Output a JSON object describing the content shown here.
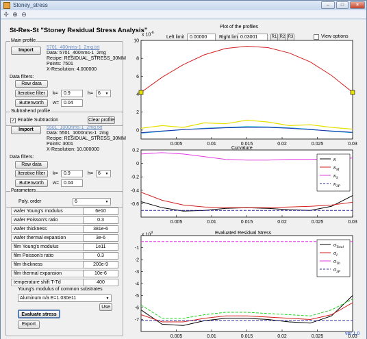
{
  "window": {
    "title": "Stoney_stress"
  },
  "app_title": "St-Res-St  \"Stoney Residual Stress Analysis\"",
  "main_profile": {
    "group_label": "Main profile",
    "import_label": "Import",
    "file": "5701_400nms-1_2mg.txt",
    "data": "Data: 5701_400nms-1_2mg",
    "recipe": "Recipe: RESIDUAL_STRESS_30MM",
    "points": "Points: 7501",
    "xres": "X-Resolution: 4.000000",
    "filters_label": "Data filters:",
    "raw_label": "Raw data",
    "iter_label": "Iterative filter",
    "butter_label": "Butterworth",
    "k_label": "k=",
    "k_value": "0.9",
    "h_label": "h=",
    "h_value": "6",
    "w_label": "w=",
    "w_value": "0.04"
  },
  "sub_profile": {
    "group_label": "Subtrahend  profile",
    "enable_label": "Enable Subtraction",
    "enable_checked": "✓",
    "clear_label": "Clear profile",
    "import_label": "Import",
    "file": "5501_1000nms-1_2mg.txt",
    "data": "Data: 5501_1000nms-1_2mg",
    "recipe": "Recipe: RESIDUAL_STRESS_30MM",
    "points": "Points: 3001",
    "xres": "X-Resolution: 10.000000",
    "filters_label": "Data filters:",
    "raw_label": "Raw data",
    "iter_label": "Iterative filter",
    "butter_label": "Butterworth",
    "k_label": "k=",
    "k_value": "0.9",
    "h_label": "h=",
    "h_value": "6",
    "w_label": "w=",
    "w_value": "0.04"
  },
  "parameters": {
    "group_label": "Parameters",
    "poly_label": "Poly. order",
    "poly_value": "6",
    "rows": [
      {
        "label": "wafer Young's modulus",
        "value": "6e10"
      },
      {
        "label": "wafer Poisson's ratio",
        "value": "0.3"
      },
      {
        "label": "wafer thickness",
        "value": "381e-6"
      },
      {
        "label": "wafer thermal expansion",
        "value": "3e-6"
      },
      {
        "label": "film Young's modulus",
        "value": "1e11"
      },
      {
        "label": "film Poisson's ratio",
        "value": "0.3"
      },
      {
        "label": "film thickness",
        "value": "200e-9"
      },
      {
        "label": "film thermal expansion",
        "value": "10e-6"
      },
      {
        "label": "temperature shift T-Td",
        "value": "400"
      }
    ],
    "substrates_label": "Young's modulus of common substrates",
    "substrate_value": "Aluminum n/a E=1.030e11",
    "use_label": "Use",
    "evaluate_label": "Evaluate stress",
    "export_label": "Export"
  },
  "profiles_plot": {
    "title": "Plot of the profiles",
    "left_limit_label": "Left limit",
    "left_limit_value": "0.00000",
    "right_limit_label": "Right limit",
    "right_limit_value": "0.03001",
    "r1_label": "R1",
    "r2_label": "R2",
    "r3_label": "R3",
    "view_options_label": "View options",
    "exponent": "x 10",
    "exponent_power": "-6"
  },
  "curvature_plot": {
    "title": "Curvature"
  },
  "stress_plot": {
    "title": "Evaluated Residual Stress",
    "exponent": "x 10",
    "exponent_power": "9"
  },
  "version": "ver 1.0",
  "colors": {
    "red": "#d21e1e",
    "blue": "#1c2fa8",
    "yellow": "#e8e000",
    "cyan": "#22b5d6",
    "green": "#22d322",
    "magenta": "#e23ae2",
    "navy": "#2a2a9a"
  },
  "chart_data": [
    {
      "type": "line",
      "title": "Plot of the profiles",
      "xlim": [
        0,
        0.03
      ],
      "ylim": [
        -1,
        10
      ],
      "x_ticks": [
        0.005,
        0.01,
        0.015,
        0.02,
        0.025,
        0.03
      ],
      "x_tick_labels": [
        "0.005",
        "0.01",
        "0.015",
        "0.02",
        "0.025",
        "0.03"
      ],
      "y_ticks": [
        0,
        2,
        4,
        6,
        8,
        10
      ],
      "y_tick_labels": [
        "0",
        "2",
        "4",
        "6",
        "8",
        "10"
      ],
      "series": [
        {
          "color": "red",
          "x": [
            0,
            0.003,
            0.006,
            0.009,
            0.012,
            0.015,
            0.018,
            0.021,
            0.024,
            0.027,
            0.03
          ],
          "y": [
            4.2,
            5.9,
            7.3,
            8.4,
            9.1,
            9.35,
            9.2,
            8.6,
            7.6,
            6.1,
            4.2
          ]
        },
        {
          "color": "cyan",
          "x": [
            0,
            0.003,
            0.006,
            0.009,
            0.012,
            0.015,
            0.018,
            0.021,
            0.024,
            0.027,
            0.03
          ],
          "y": [
            -0.35,
            -0.15,
            0.05,
            0.2,
            0.3,
            0.4,
            0.35,
            0.25,
            0.1,
            -0.15,
            -0.3
          ]
        },
        {
          "color": "yellow",
          "x": [
            0,
            0.003,
            0.006,
            0.009,
            0.012,
            0.015,
            0.018,
            0.021,
            0.024,
            0.027,
            0.03
          ],
          "y": [
            0.2,
            0.5,
            0.3,
            0.8,
            0.7,
            1.1,
            0.9,
            0.5,
            0.6,
            0.3,
            0.1
          ]
        },
        {
          "color": "blue",
          "x": [
            0,
            0.003,
            0.006,
            0.009,
            0.012,
            0.015,
            0.018,
            0.021,
            0.024,
            0.027,
            0.03
          ],
          "y": [
            -0.3,
            -0.1,
            0.05,
            0.15,
            0.25,
            0.3,
            0.3,
            0.2,
            0.05,
            -0.1,
            -0.25
          ]
        }
      ],
      "markers": [
        {
          "x": 0,
          "y": 4.2
        },
        {
          "x": 0.03,
          "y": 4.2
        }
      ]
    },
    {
      "type": "line",
      "title": "Curvature",
      "xlim": [
        0,
        0.03
      ],
      "ylim": [
        -0.8,
        0.2
      ],
      "x_ticks": [
        0.005,
        0.01,
        0.015,
        0.02,
        0.025,
        0.03
      ],
      "x_tick_labels": [
        "0.005",
        "0.01",
        "0.015",
        "0.02",
        "0.025",
        "0.03"
      ],
      "y_ticks": [
        -0.6,
        -0.4,
        -0.2,
        0,
        0.2
      ],
      "y_tick_labels": [
        "-0.6",
        "-0.4",
        "-0.2",
        "0",
        "0.2"
      ],
      "legend": [
        {
          "label": "κ",
          "sub": "",
          "color": "black",
          "dash": false
        },
        {
          "label": "κ",
          "sub": "M",
          "color": "red",
          "dash": false
        },
        {
          "label": "κ",
          "sub": "S",
          "color": "magenta",
          "dash": false
        },
        {
          "label": "κ",
          "sub": "3P",
          "color": "navy",
          "dash": true
        }
      ],
      "series": [
        {
          "color": "black",
          "x": [
            0,
            0.003,
            0.006,
            0.009,
            0.012,
            0.015,
            0.018,
            0.021,
            0.024,
            0.027,
            0.03
          ],
          "y": [
            -0.57,
            -0.66,
            -0.71,
            -0.7,
            -0.67,
            -0.66,
            -0.67,
            -0.69,
            -0.7,
            -0.64,
            -0.48
          ]
        },
        {
          "color": "red",
          "x": [
            0,
            0.003,
            0.006,
            0.009,
            0.012,
            0.015,
            0.018,
            0.021,
            0.024,
            0.027,
            0.03
          ],
          "y": [
            -0.43,
            -0.55,
            -0.62,
            -0.65,
            -0.66,
            -0.66,
            -0.66,
            -0.65,
            -0.64,
            -0.62,
            -0.58
          ]
        },
        {
          "color": "magenta",
          "x": [
            0,
            0.003,
            0.006,
            0.009,
            0.012,
            0.015,
            0.018,
            0.021,
            0.024,
            0.027,
            0.03
          ],
          "y": [
            0.14,
            0.16,
            0.14,
            0.1,
            0.06,
            0.05,
            0.05,
            0.06,
            0.06,
            0.07,
            0.08
          ]
        },
        {
          "color": "navy",
          "dash": true,
          "x": [
            0,
            0.03
          ],
          "y": [
            -0.7,
            -0.7
          ]
        }
      ]
    },
    {
      "type": "line",
      "title": "Evaluated Residual Stress",
      "xlim": [
        0,
        0.03
      ],
      "ylim": [
        -8,
        0
      ],
      "x_ticks": [
        0.005,
        0.01,
        0.015,
        0.02,
        0.025,
        0.03
      ],
      "x_tick_labels": [
        "0.005",
        "0.01",
        "0.015",
        "0.02",
        "0.025",
        "0.03"
      ],
      "y_ticks": [
        -7,
        -6,
        -5,
        -4,
        -3,
        -2,
        -1
      ],
      "y_tick_labels": [
        "-7",
        "-6",
        "-5",
        "-4",
        "-3",
        "-2",
        "-1"
      ],
      "legend": [
        {
          "label": "σ",
          "sub": "Total",
          "color": "black",
          "dash": false
        },
        {
          "label": "σ",
          "sub": "I",
          "color": "red",
          "dash": false
        },
        {
          "label": "σ",
          "sub": "Th",
          "color": "magenta",
          "dash": false
        },
        {
          "label": "σ",
          "sub": "3P",
          "color": "navy",
          "dash": true
        }
      ],
      "series": [
        {
          "color": "black",
          "x": [
            0,
            0.003,
            0.006,
            0.009,
            0.012,
            0.015,
            0.018,
            0.021,
            0.024,
            0.027,
            0.03
          ],
          "y": [
            -6.2,
            -7.4,
            -7.5,
            -7.1,
            -6.9,
            -6.9,
            -7.0,
            -7.2,
            -7.3,
            -6.7,
            -5.0
          ]
        },
        {
          "color": "red",
          "x": [
            0,
            0.003,
            0.006,
            0.009,
            0.012,
            0.015,
            0.018,
            0.021,
            0.024,
            0.027,
            0.03
          ],
          "y": [
            -6.6,
            -7.2,
            -7.2,
            -6.9,
            -6.7,
            -6.7,
            -6.8,
            -6.9,
            -7.0,
            -6.6,
            -5.6
          ]
        },
        {
          "color": "green",
          "dash": true,
          "x": [
            0,
            0.003,
            0.006,
            0.009,
            0.012,
            0.015,
            0.018,
            0.021,
            0.024,
            0.027,
            0.03
          ],
          "y": [
            -5.8,
            -6.9,
            -6.9,
            -6.6,
            -6.4,
            -6.4,
            -6.5,
            -6.6,
            -6.7,
            -6.2,
            -5.3
          ]
        },
        {
          "color": "magenta",
          "dash": true,
          "x": [
            0,
            0.03
          ],
          "y": [
            -0.5,
            -0.5
          ]
        },
        {
          "color": "navy",
          "dash": true,
          "x": [
            0,
            0.03
          ],
          "y": [
            -7.1,
            -7.1
          ]
        }
      ]
    }
  ]
}
